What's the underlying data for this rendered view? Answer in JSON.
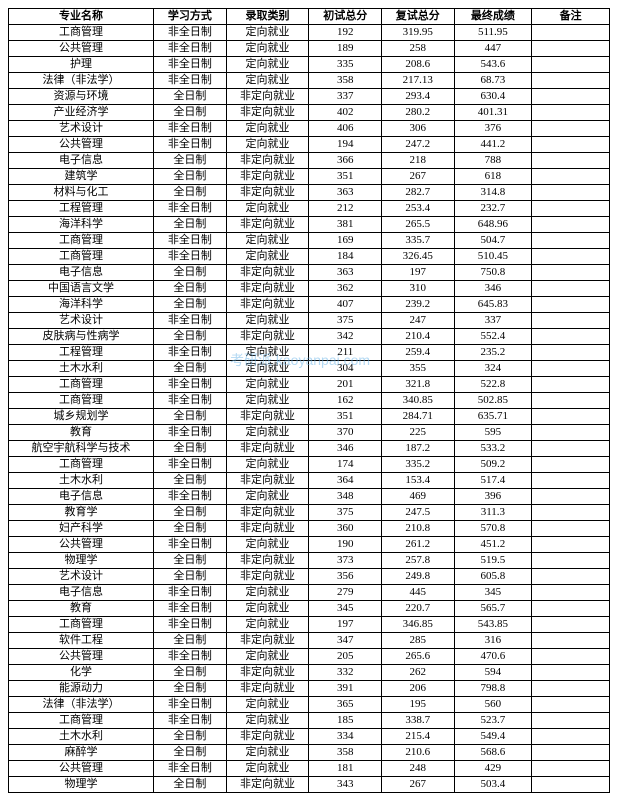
{
  "watermark": "考研派 kaoyanpai.com",
  "table": {
    "columns": [
      "专业名称",
      "学习方式",
      "录取类别",
      "初试总分",
      "复试总分",
      "最终成绩",
      "备注"
    ],
    "rows": [
      [
        "工商管理",
        "非全日制",
        "定向就业",
        "192",
        "319.95",
        "511.95",
        ""
      ],
      [
        "公共管理",
        "非全日制",
        "定向就业",
        "189",
        "258",
        "447",
        ""
      ],
      [
        "护理",
        "非全日制",
        "定向就业",
        "335",
        "208.6",
        "543.6",
        ""
      ],
      [
        "法律（非法学）",
        "非全日制",
        "定向就业",
        "358",
        "217.13",
        "68.73",
        ""
      ],
      [
        "资源与环境",
        "全日制",
        "非定向就业",
        "337",
        "293.4",
        "630.4",
        ""
      ],
      [
        "产业经济学",
        "全日制",
        "非定向就业",
        "402",
        "280.2",
        "401.31",
        ""
      ],
      [
        "艺术设计",
        "非全日制",
        "定向就业",
        "406",
        "306",
        "376",
        ""
      ],
      [
        "公共管理",
        "非全日制",
        "定向就业",
        "194",
        "247.2",
        "441.2",
        ""
      ],
      [
        "电子信息",
        "全日制",
        "非定向就业",
        "366",
        "218",
        "788",
        ""
      ],
      [
        "建筑学",
        "全日制",
        "非定向就业",
        "351",
        "267",
        "618",
        ""
      ],
      [
        "材料与化工",
        "全日制",
        "非定向就业",
        "363",
        "282.7",
        "314.8",
        ""
      ],
      [
        "工程管理",
        "非全日制",
        "定向就业",
        "212",
        "253.4",
        "232.7",
        ""
      ],
      [
        "海洋科学",
        "全日制",
        "非定向就业",
        "381",
        "265.5",
        "648.96",
        ""
      ],
      [
        "工商管理",
        "非全日制",
        "定向就业",
        "169",
        "335.7",
        "504.7",
        ""
      ],
      [
        "工商管理",
        "非全日制",
        "定向就业",
        "184",
        "326.45",
        "510.45",
        ""
      ],
      [
        "电子信息",
        "全日制",
        "非定向就业",
        "363",
        "197",
        "750.8",
        ""
      ],
      [
        "中国语言文学",
        "全日制",
        "非定向就业",
        "362",
        "310",
        "346",
        ""
      ],
      [
        "海洋科学",
        "全日制",
        "非定向就业",
        "407",
        "239.2",
        "645.83",
        ""
      ],
      [
        "艺术设计",
        "非全日制",
        "定向就业",
        "375",
        "247",
        "337",
        ""
      ],
      [
        "皮肤病与性病学",
        "全日制",
        "非定向就业",
        "342",
        "210.4",
        "552.4",
        ""
      ],
      [
        "工程管理",
        "非全日制",
        "定向就业",
        "211",
        "259.4",
        "235.2",
        ""
      ],
      [
        "土木水利",
        "全日制",
        "定向就业",
        "304",
        "355",
        "324",
        ""
      ],
      [
        "工商管理",
        "非全日制",
        "定向就业",
        "201",
        "321.8",
        "522.8",
        ""
      ],
      [
        "工商管理",
        "非全日制",
        "定向就业",
        "162",
        "340.85",
        "502.85",
        ""
      ],
      [
        "城乡规划学",
        "全日制",
        "非定向就业",
        "351",
        "284.71",
        "635.71",
        ""
      ],
      [
        "教育",
        "非全日制",
        "定向就业",
        "370",
        "225",
        "595",
        ""
      ],
      [
        "航空宇航科学与技术",
        "全日制",
        "非定向就业",
        "346",
        "187.2",
        "533.2",
        ""
      ],
      [
        "工商管理",
        "非全日制",
        "定向就业",
        "174",
        "335.2",
        "509.2",
        ""
      ],
      [
        "土木水利",
        "全日制",
        "非定向就业",
        "364",
        "153.4",
        "517.4",
        ""
      ],
      [
        "电子信息",
        "非全日制",
        "定向就业",
        "348",
        "469",
        "396",
        ""
      ],
      [
        "教育学",
        "全日制",
        "非定向就业",
        "375",
        "247.5",
        "311.3",
        ""
      ],
      [
        "妇产科学",
        "全日制",
        "非定向就业",
        "360",
        "210.8",
        "570.8",
        ""
      ],
      [
        "公共管理",
        "非全日制",
        "定向就业",
        "190",
        "261.2",
        "451.2",
        ""
      ],
      [
        "物理学",
        "全日制",
        "非定向就业",
        "373",
        "257.8",
        "519.5",
        ""
      ],
      [
        "艺术设计",
        "全日制",
        "非定向就业",
        "356",
        "249.8",
        "605.8",
        ""
      ],
      [
        "电子信息",
        "非全日制",
        "定向就业",
        "279",
        "445",
        "345",
        ""
      ],
      [
        "教育",
        "非全日制",
        "定向就业",
        "345",
        "220.7",
        "565.7",
        ""
      ],
      [
        "工商管理",
        "非全日制",
        "定向就业",
        "197",
        "346.85",
        "543.85",
        ""
      ],
      [
        "软件工程",
        "全日制",
        "非定向就业",
        "347",
        "285",
        "316",
        ""
      ],
      [
        "公共管理",
        "非全日制",
        "定向就业",
        "205",
        "265.6",
        "470.6",
        ""
      ],
      [
        "化学",
        "全日制",
        "非定向就业",
        "332",
        "262",
        "594",
        ""
      ],
      [
        "能源动力",
        "全日制",
        "非定向就业",
        "391",
        "206",
        "798.8",
        ""
      ],
      [
        "法律（非法学）",
        "非全日制",
        "定向就业",
        "365",
        "195",
        "560",
        ""
      ],
      [
        "工商管理",
        "非全日制",
        "定向就业",
        "185",
        "338.7",
        "523.7",
        ""
      ],
      [
        "土木水利",
        "全日制",
        "非定向就业",
        "334",
        "215.4",
        "549.4",
        ""
      ],
      [
        "麻醉学",
        "全日制",
        "定向就业",
        "358",
        "210.6",
        "568.6",
        ""
      ],
      [
        "公共管理",
        "非全日制",
        "定向就业",
        "181",
        "248",
        "429",
        ""
      ],
      [
        "物理学",
        "全日制",
        "非定向就业",
        "343",
        "267",
        "503.4",
        ""
      ]
    ]
  }
}
